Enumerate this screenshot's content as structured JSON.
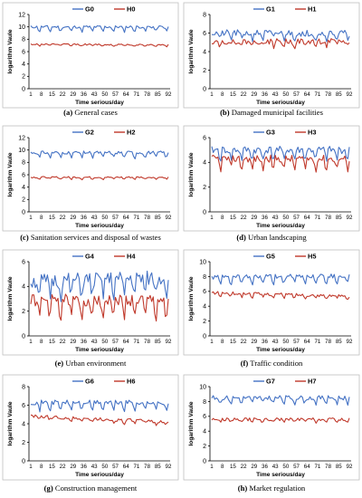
{
  "figure": {
    "colors": {
      "G": "#4472c4",
      "H": "#c0392b"
    },
    "x_tick_labels": [
      "1",
      "8",
      "15",
      "22",
      "29",
      "36",
      "43",
      "50",
      "57",
      "64",
      "71",
      "78",
      "85",
      "92"
    ]
  },
  "chart_data": [
    {
      "type": "line",
      "letter": "(a)",
      "caption": "General cases",
      "ylabel": "logarithm Vaule",
      "xlabel": "Time serious/day",
      "ylim": [
        0,
        12
      ],
      "yticks": [
        0,
        2,
        4,
        6,
        8,
        10,
        12
      ],
      "series": [
        {
          "name": "G0",
          "color": "#4472c4",
          "base": 10.0,
          "amp": 0.22,
          "dips": 0.7,
          "drift": 0,
          "seed": 11
        },
        {
          "name": "H0",
          "color": "#c0392b",
          "base": 7.2,
          "amp": 0.12,
          "dips": 0.25,
          "drift": -0.1,
          "seed": 12
        }
      ]
    },
    {
      "type": "line",
      "letter": "(b)",
      "caption": "Damaged municipal facilities",
      "ylabel": "logarithm Vaule",
      "xlabel": "Time serious/day",
      "ylim": [
        0,
        8
      ],
      "yticks": [
        0,
        2,
        4,
        6,
        8
      ],
      "series": [
        {
          "name": "G1",
          "color": "#4472c4",
          "base": 6.0,
          "amp": 0.35,
          "dips": 0.6,
          "drift": 0,
          "seed": 21
        },
        {
          "name": "H1",
          "color": "#c0392b",
          "base": 5.1,
          "amp": 0.3,
          "dips": 0.5,
          "drift": 0,
          "seed": 22
        }
      ]
    },
    {
      "type": "line",
      "letter": "(c)",
      "caption": "Sanitation services and disposal of wastes",
      "ylabel": "logarithm Vaule",
      "xlabel": "Time serious/day",
      "ylim": [
        0,
        12
      ],
      "yticks": [
        0,
        2,
        4,
        6,
        8,
        10,
        12
      ],
      "series": [
        {
          "name": "G2",
          "color": "#4472c4",
          "base": 9.6,
          "amp": 0.25,
          "dips": 0.8,
          "drift": 0,
          "seed": 31
        },
        {
          "name": "H2",
          "color": "#c0392b",
          "base": 5.6,
          "amp": 0.12,
          "dips": 0.3,
          "drift": 0,
          "seed": 32
        }
      ]
    },
    {
      "type": "line",
      "letter": "(d)",
      "caption": "Urban landscaping",
      "ylabel": "logarithm Vaule",
      "xlabel": "Time serious/day",
      "ylim": [
        0,
        6
      ],
      "yticks": [
        0,
        2,
        4,
        6
      ],
      "series": [
        {
          "name": "G3",
          "color": "#4472c4",
          "base": 5.0,
          "amp": 0.3,
          "dips": 0.7,
          "drift": 0,
          "seed": 41
        },
        {
          "name": "H3",
          "color": "#c0392b",
          "base": 4.3,
          "amp": 0.3,
          "dips": 0.8,
          "drift": 0,
          "seed": 42
        }
      ]
    },
    {
      "type": "line",
      "letter": "(e)",
      "caption": "Urban environment",
      "ylabel": "logarithm Vaule",
      "xlabel": "Time serious/day",
      "ylim": [
        0,
        6
      ],
      "yticks": [
        0,
        2,
        4,
        6
      ],
      "series": [
        {
          "name": "G4",
          "color": "#4472c4",
          "base": 4.4,
          "amp": 0.6,
          "dips": 1.2,
          "drift": 0.3,
          "seed": 51
        },
        {
          "name": "H4",
          "color": "#c0392b",
          "base": 2.9,
          "amp": 0.5,
          "dips": 1.4,
          "drift": 0,
          "seed": 52
        }
      ]
    },
    {
      "type": "line",
      "letter": "(f)",
      "caption": "Traffic condition",
      "ylabel": "logarithm Vaule",
      "xlabel": "Time serious/day",
      "ylim": [
        0,
        10
      ],
      "yticks": [
        0,
        2,
        4,
        6,
        8,
        10
      ],
      "series": [
        {
          "name": "G5",
          "color": "#4472c4",
          "base": 7.9,
          "amp": 0.3,
          "dips": 0.9,
          "drift": 0.2,
          "seed": 61
        },
        {
          "name": "H5",
          "color": "#c0392b",
          "base": 5.8,
          "amp": 0.2,
          "dips": 0.4,
          "drift": -0.4,
          "seed": 62
        }
      ]
    },
    {
      "type": "line",
      "letter": "(g)",
      "caption": "Construction management",
      "ylabel": "logarithm Vaule",
      "xlabel": "Time serious/day",
      "ylim": [
        0,
        8
      ],
      "yticks": [
        0,
        2,
        4,
        6,
        8
      ],
      "series": [
        {
          "name": "G6",
          "color": "#4472c4",
          "base": 6.3,
          "amp": 0.25,
          "dips": 0.8,
          "drift": 0,
          "seed": 71
        },
        {
          "name": "H6",
          "color": "#c0392b",
          "base": 4.8,
          "amp": 0.18,
          "dips": 0.3,
          "drift": -0.6,
          "seed": 72
        }
      ]
    },
    {
      "type": "line",
      "letter": "(h)",
      "caption": "Market regulation",
      "ylabel": "logarithm Vaule",
      "xlabel": "Time serious/day",
      "ylim": [
        0,
        10
      ],
      "yticks": [
        0,
        2,
        4,
        6,
        8,
        10
      ],
      "series": [
        {
          "name": "G7",
          "color": "#4472c4",
          "base": 8.5,
          "amp": 0.3,
          "dips": 0.7,
          "drift": 0,
          "seed": 81
        },
        {
          "name": "H7",
          "color": "#c0392b",
          "base": 5.6,
          "amp": 0.2,
          "dips": 0.4,
          "drift": 0,
          "seed": 82
        }
      ]
    }
  ]
}
